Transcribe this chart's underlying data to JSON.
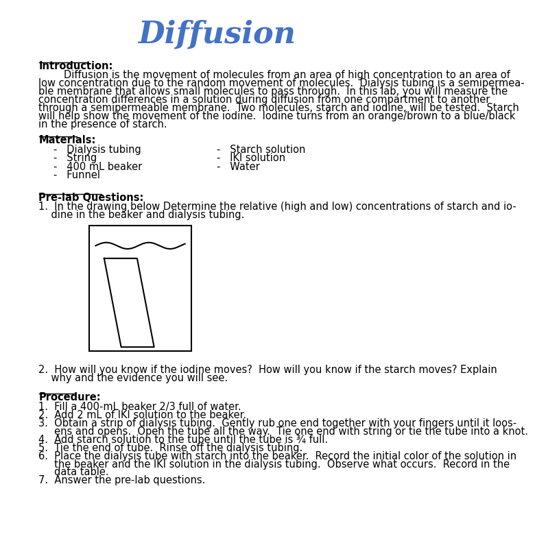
{
  "title": "Diffusion",
  "title_color": "#4472C4",
  "title_fontsize": 32,
  "bg_color": "#ffffff",
  "body_color": "#000000",
  "body_fontsize": 10.5,
  "intro_heading": "Introduction:",
  "intro_text": "        Diffusion is the movement of molecules from an area of high concentration to an area of\nlow concentration due to the random movement of molecules.  Dialysis tubing is a semipermea-\nble membrane that allows small molecules to pass through.  In this lab, you will measure the\nconcentration differences in a solution during diffusion from one compartment to another\nthrough a semipermeable membrane.  Two molecules, starch and iodine, will be tested.  Starch\nwill help show the movement of the iodine.  Iodine turns from an orange/brown to a blue/black\nin the presence of starch.",
  "materials_heading": "Materials:",
  "materials_left": [
    "Dialysis tubing",
    "String",
    "400 mL beaker",
    "Funnel"
  ],
  "materials_right": [
    "Starch solution",
    "IKI solution",
    "Water"
  ],
  "prelab_heading": "Pre-lab Questions:",
  "prelab_q1_line1": "1.  In the drawing below Determine the relative (high and low) concentrations of starch and io-",
  "prelab_q1_line2": "    dine in the beaker and dialysis tubing.",
  "prelab_q2_line1": "2.  How will you know if the iodine moves?  How will you know if the starch moves? Explain",
  "prelab_q2_line2": "    why and the evidence you will see.",
  "procedure_heading": "Procedure:",
  "procedure_steps": [
    [
      "1.  Fill a 400-mL beaker 2/3 full of water."
    ],
    [
      "2.  Add 2 mL of IKI solution to the beaker."
    ],
    [
      "3.  Obtain a strip of dialysis tubing.  Gently rub one end together with your fingers until it loos-",
      "     ens and opens.  Open the tube all the way.  Tie one end with string or tie the tube into a knot."
    ],
    [
      "4.  Add starch solution to the tube until the tube is ¾ full."
    ],
    [
      "5.  Tie the end of tube.  Rinse off the dialysis tubing."
    ],
    [
      "6.  Place the dialysis tube with starch into the beaker.  Record the initial color of the solution in",
      "     the beaker and the IKI solution in the dialysis tubing.  Observe what occurs.  Record in the",
      "     data table."
    ],
    [
      "7.  Answer the pre-lab questions."
    ]
  ]
}
